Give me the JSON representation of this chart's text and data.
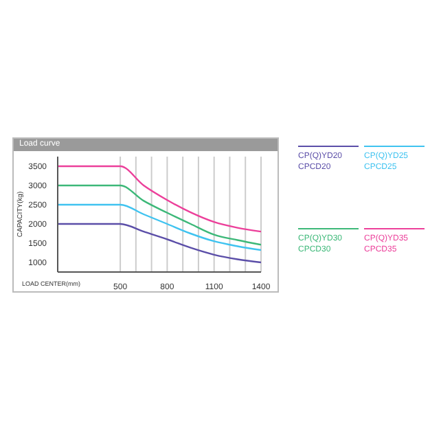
{
  "chart_data": {
    "type": "line",
    "title": "Load curve",
    "xlabel": "LOAD CENTER(mm)",
    "ylabel": "CAPACITY(kg)",
    "x": [
      100,
      500,
      650,
      800,
      950,
      1100,
      1250,
      1400
    ],
    "xlim": [
      100,
      1400
    ],
    "xticks": [
      {
        "value": 500,
        "label": "500"
      },
      {
        "value": 600,
        "label": null
      },
      {
        "value": 700,
        "label": null
      },
      {
        "value": 800,
        "label": "800"
      },
      {
        "value": 900,
        "label": null
      },
      {
        "value": 1000,
        "label": null
      },
      {
        "value": 1100,
        "label": "1100"
      },
      {
        "value": 1200,
        "label": null
      },
      {
        "value": 1300,
        "label": null
      },
      {
        "value": 1400,
        "label": "1400"
      }
    ],
    "ylim": [
      750,
      3750
    ],
    "yticks": [
      1000,
      1500,
      2000,
      2500,
      3000,
      3500
    ],
    "grid": "x",
    "legend": "right",
    "marker": "none",
    "line_style": "solid",
    "series": [
      {
        "name": "CP(Q)YD20\nCPCD20",
        "color": "#5b4ea8",
        "values": [
          2000,
          2000,
          1800,
          1600,
          1380,
          1200,
          1080,
          1000
        ]
      },
      {
        "name": "CP(Q)YD25\nCPCD25",
        "color": "#3fc3f0",
        "values": [
          2500,
          2500,
          2250,
          2000,
          1750,
          1550,
          1420,
          1320
        ]
      },
      {
        "name": "CP(Q)YD30\nCPCD30",
        "color": "#3cb878",
        "values": [
          3000,
          3000,
          2600,
          2290,
          2000,
          1720,
          1580,
          1460
        ]
      },
      {
        "name": "CP(Q)YD35\nCPCD35",
        "color": "#ec3f9a",
        "values": [
          3500,
          3500,
          3000,
          2620,
          2300,
          2050,
          1900,
          1800
        ]
      }
    ]
  }
}
